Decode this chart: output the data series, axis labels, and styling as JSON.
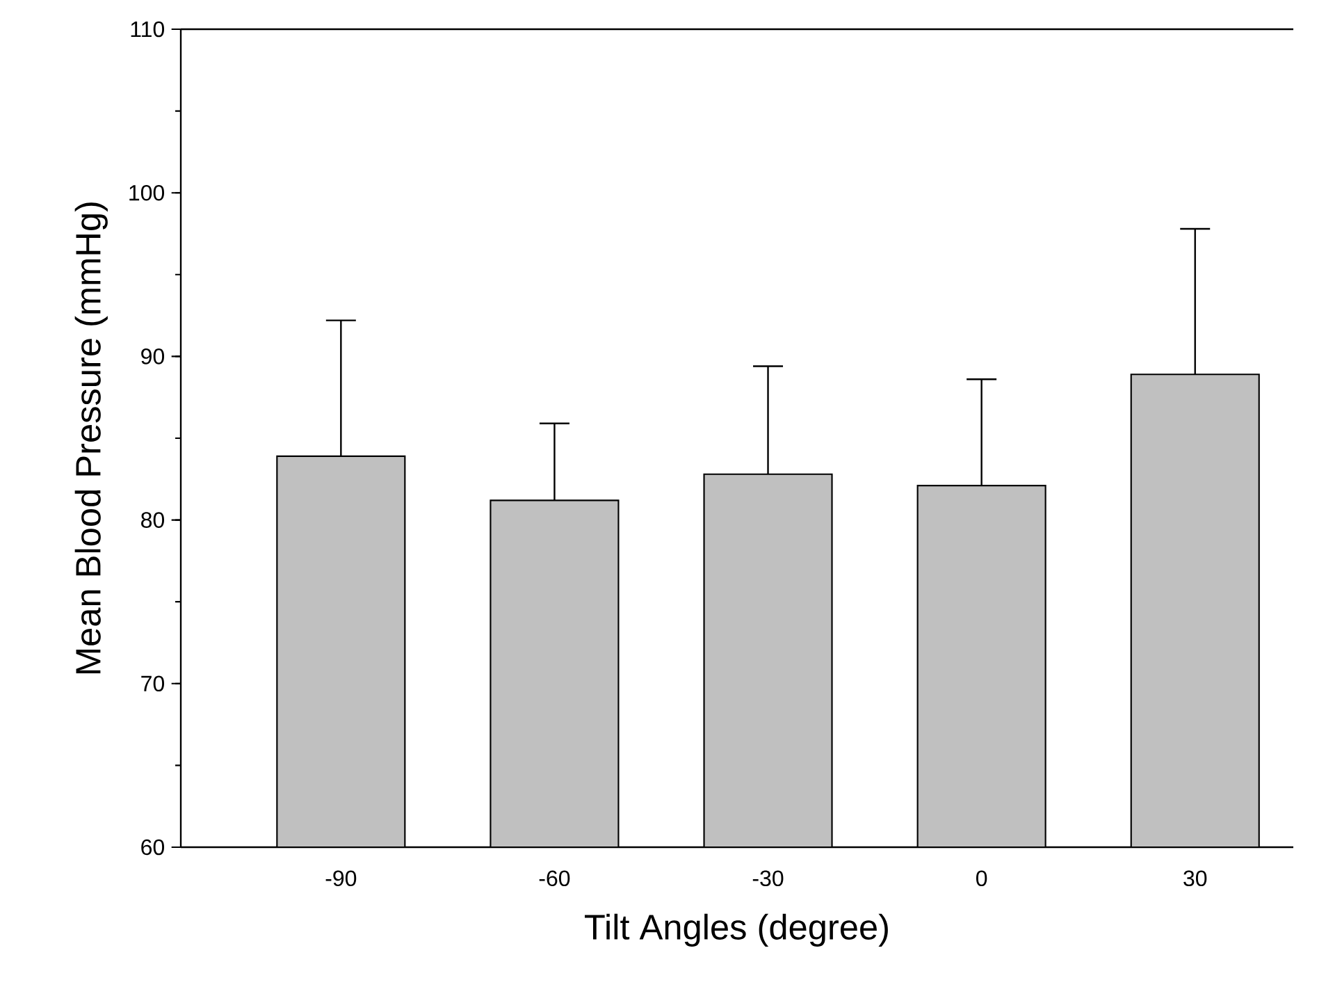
{
  "chart_data": {
    "type": "bar",
    "xlabel": "Tilt Angles (degree)",
    "ylabel": "Mean Blood Pressure (mmHg)",
    "categories": [
      "-90",
      "-60",
      "-30",
      "0",
      "30"
    ],
    "values": [
      83.9,
      81.2,
      82.8,
      82.1,
      88.9
    ],
    "errors": [
      [
        83.9,
        92.2
      ],
      [
        81.2,
        85.9
      ],
      [
        82.8,
        89.4
      ],
      [
        82.1,
        88.6
      ],
      [
        88.9,
        97.8
      ]
    ],
    "color": "#c0c0c0",
    "ylim": [
      60,
      110
    ],
    "yticks": [
      60,
      70,
      80,
      90,
      100,
      110
    ]
  }
}
